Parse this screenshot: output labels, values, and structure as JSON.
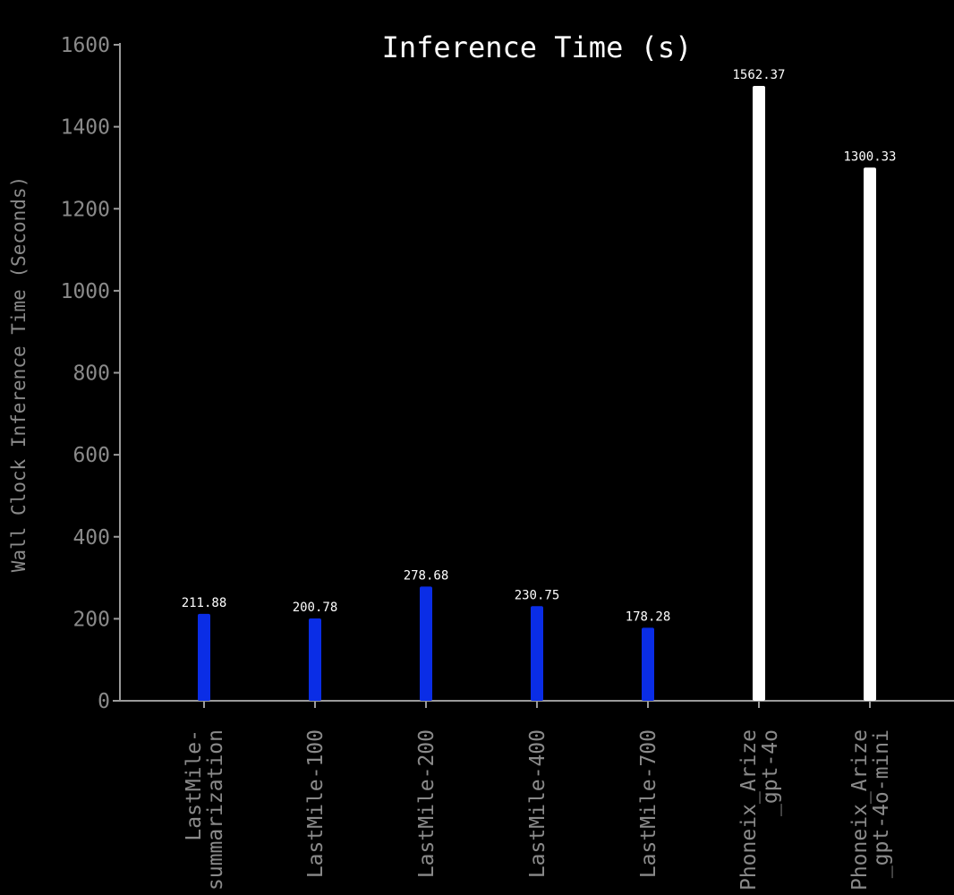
{
  "chart_data": {
    "type": "bar",
    "title": "Inference Time (s)",
    "xlabel": "",
    "ylabel": "Wall Clock Inference Time (Seconds)",
    "categories": [
      [
        "LastMile-",
        "summarization"
      ],
      [
        "LastMile-100"
      ],
      [
        "LastMile-200"
      ],
      [
        "LastMile-400"
      ],
      [
        "LastMile-700"
      ],
      [
        "Phoneix_Arize",
        "_gpt-4o"
      ],
      [
        "Phoneix_Arize",
        "_gpt-4o-mini"
      ]
    ],
    "values": [
      211.88,
      200.78,
      278.68,
      230.75,
      178.28,
      1562.37,
      1300.33
    ],
    "value_labels": [
      "211.88",
      "200.78",
      "278.68",
      "230.75",
      "178.28",
      "1562.37",
      "1300.33"
    ],
    "bar_colors": [
      "#0a2de6",
      "#0a2de6",
      "#0a2de6",
      "#0a2de6",
      "#0a2de6",
      "#ffffff",
      "#ffffff"
    ],
    "ylim": [
      0,
      1600
    ],
    "yticks": [
      0,
      200,
      400,
      600,
      800,
      1000,
      1200,
      1400,
      1600
    ],
    "grid": false,
    "legend": "none"
  },
  "colors": {
    "background": "#000000",
    "axis": "#9a9a9a",
    "tick_label": "#8a8a8a",
    "title": "#ffffff",
    "value_label": "#ffffff",
    "lastmile": "#0a2de6",
    "arize": "#ffffff"
  }
}
